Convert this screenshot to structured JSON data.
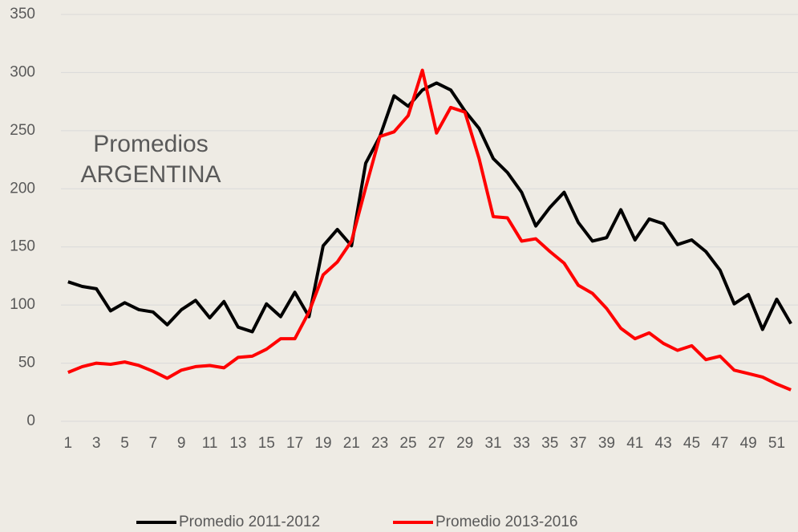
{
  "chart_data": {
    "type": "line",
    "annotation": [
      "Promedios",
      "ARGENTINA"
    ],
    "categories": [
      1,
      null,
      3,
      null,
      5,
      null,
      7,
      null,
      9,
      null,
      11,
      null,
      13,
      null,
      15,
      null,
      17,
      null,
      19,
      null,
      21,
      null,
      23,
      null,
      25,
      null,
      27,
      null,
      29,
      null,
      31,
      null,
      33,
      null,
      35,
      null,
      37,
      null,
      39,
      null,
      41,
      null,
      43,
      null,
      45,
      null,
      47,
      null,
      49,
      null,
      51,
      null
    ],
    "series": [
      {
        "name": "Promedio 2011-2012",
        "color": "#000000",
        "values": [
          120,
          116,
          114,
          95,
          102,
          96,
          94,
          83,
          96,
          104,
          89,
          103,
          81,
          77,
          101,
          90,
          111,
          90,
          151,
          165,
          151,
          222,
          245,
          280,
          271,
          285,
          291,
          285,
          267,
          252,
          226,
          214,
          197,
          168,
          184,
          197,
          171,
          155,
          158,
          182,
          156,
          174,
          170,
          152,
          156,
          146,
          130,
          101,
          109,
          79,
          105,
          84
        ]
      },
      {
        "name": "Promedio 2013-2016",
        "color": "#ff0000",
        "values": [
          42,
          47,
          50,
          49,
          51,
          48,
          43,
          37,
          44,
          47,
          48,
          46,
          55,
          56,
          62,
          71,
          71,
          94,
          126,
          137,
          155,
          201,
          245,
          249,
          263,
          302,
          248,
          270,
          266,
          226,
          176,
          175,
          155,
          157,
          146,
          136,
          117,
          110,
          97,
          80,
          71,
          76,
          67,
          61,
          65,
          53,
          56,
          44,
          41,
          38,
          32,
          27
        ]
      }
    ],
    "ylim": [
      0,
      350
    ],
    "yticks": [
      0,
      50,
      100,
      150,
      200,
      250,
      300,
      350
    ],
    "grid": true,
    "legend": "bottom"
  }
}
